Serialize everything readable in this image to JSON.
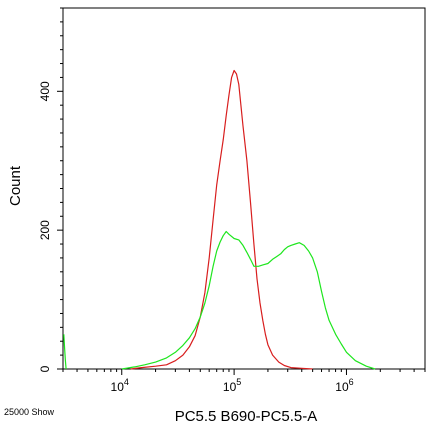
{
  "chart_data": {
    "type": "line",
    "xlabel": "PC5.5 B690-PC5.5-A",
    "ylabel": "Count",
    "x_scale": "log",
    "xlim": [
      3000,
      5000000
    ],
    "ylim": [
      0,
      520
    ],
    "x_ticks": [
      {
        "value": 10000,
        "base": "10",
        "exp": "4"
      },
      {
        "value": 100000,
        "base": "10",
        "exp": "5"
      },
      {
        "value": 1000000,
        "base": "10",
        "exp": "6"
      }
    ],
    "y_ticks": [
      {
        "value": 0,
        "label": "0"
      },
      {
        "value": 200,
        "label": "200"
      },
      {
        "value": 400,
        "label": "400"
      }
    ],
    "grid": false,
    "legend": "none",
    "series": [
      {
        "color": "#d81e1e",
        "x": [
          12000,
          15000,
          20000,
          25000,
          30000,
          35000,
          40000,
          45000,
          50000,
          55000,
          60000,
          65000,
          70000,
          75000,
          80000,
          85000,
          90000,
          95000,
          100000,
          105000,
          110000,
          115000,
          120000,
          130000,
          140000,
          150000,
          160000,
          170000,
          180000,
          190000,
          200000,
          220000,
          250000,
          280000,
          320000,
          400000,
          500000
        ],
        "y": [
          0,
          2,
          4,
          6,
          12,
          20,
          32,
          48,
          75,
          110,
          160,
          215,
          265,
          300,
          330,
          365,
          395,
          420,
          430,
          425,
          410,
          380,
          350,
          300,
          240,
          180,
          130,
          95,
          70,
          50,
          35,
          20,
          10,
          5,
          2,
          1,
          0
        ]
      },
      {
        "color": "#1ee61e",
        "x": [
          10000,
          13000,
          16000,
          20000,
          25000,
          30000,
          35000,
          40000,
          45000,
          50000,
          55000,
          60000,
          65000,
          70000,
          75000,
          80000,
          85000,
          90000,
          100000,
          110000,
          120000,
          130000,
          140000,
          150000,
          165000,
          180000,
          200000,
          220000,
          240000,
          260000,
          280000,
          300000,
          320000,
          350000,
          380000,
          420000,
          460000,
          500000,
          550000,
          600000,
          650000,
          700000,
          800000,
          900000,
          1000000,
          1200000,
          1500000,
          1800000
        ],
        "y": [
          0,
          3,
          6,
          10,
          16,
          24,
          34,
          45,
          58,
          75,
          95,
          120,
          148,
          170,
          183,
          192,
          198,
          194,
          188,
          186,
          178,
          168,
          158,
          148,
          148,
          150,
          152,
          158,
          162,
          166,
          172,
          176,
          178,
          180,
          182,
          178,
          170,
          160,
          140,
          112,
          88,
          70,
          50,
          36,
          24,
          12,
          4,
          0
        ]
      },
      {
        "color": "#1ee61e",
        "x": [
          3050,
          3100,
          3150,
          3200
        ],
        "y": [
          50,
          30,
          12,
          0
        ]
      }
    ]
  },
  "footer": {
    "events_label": "25000 Show"
  }
}
